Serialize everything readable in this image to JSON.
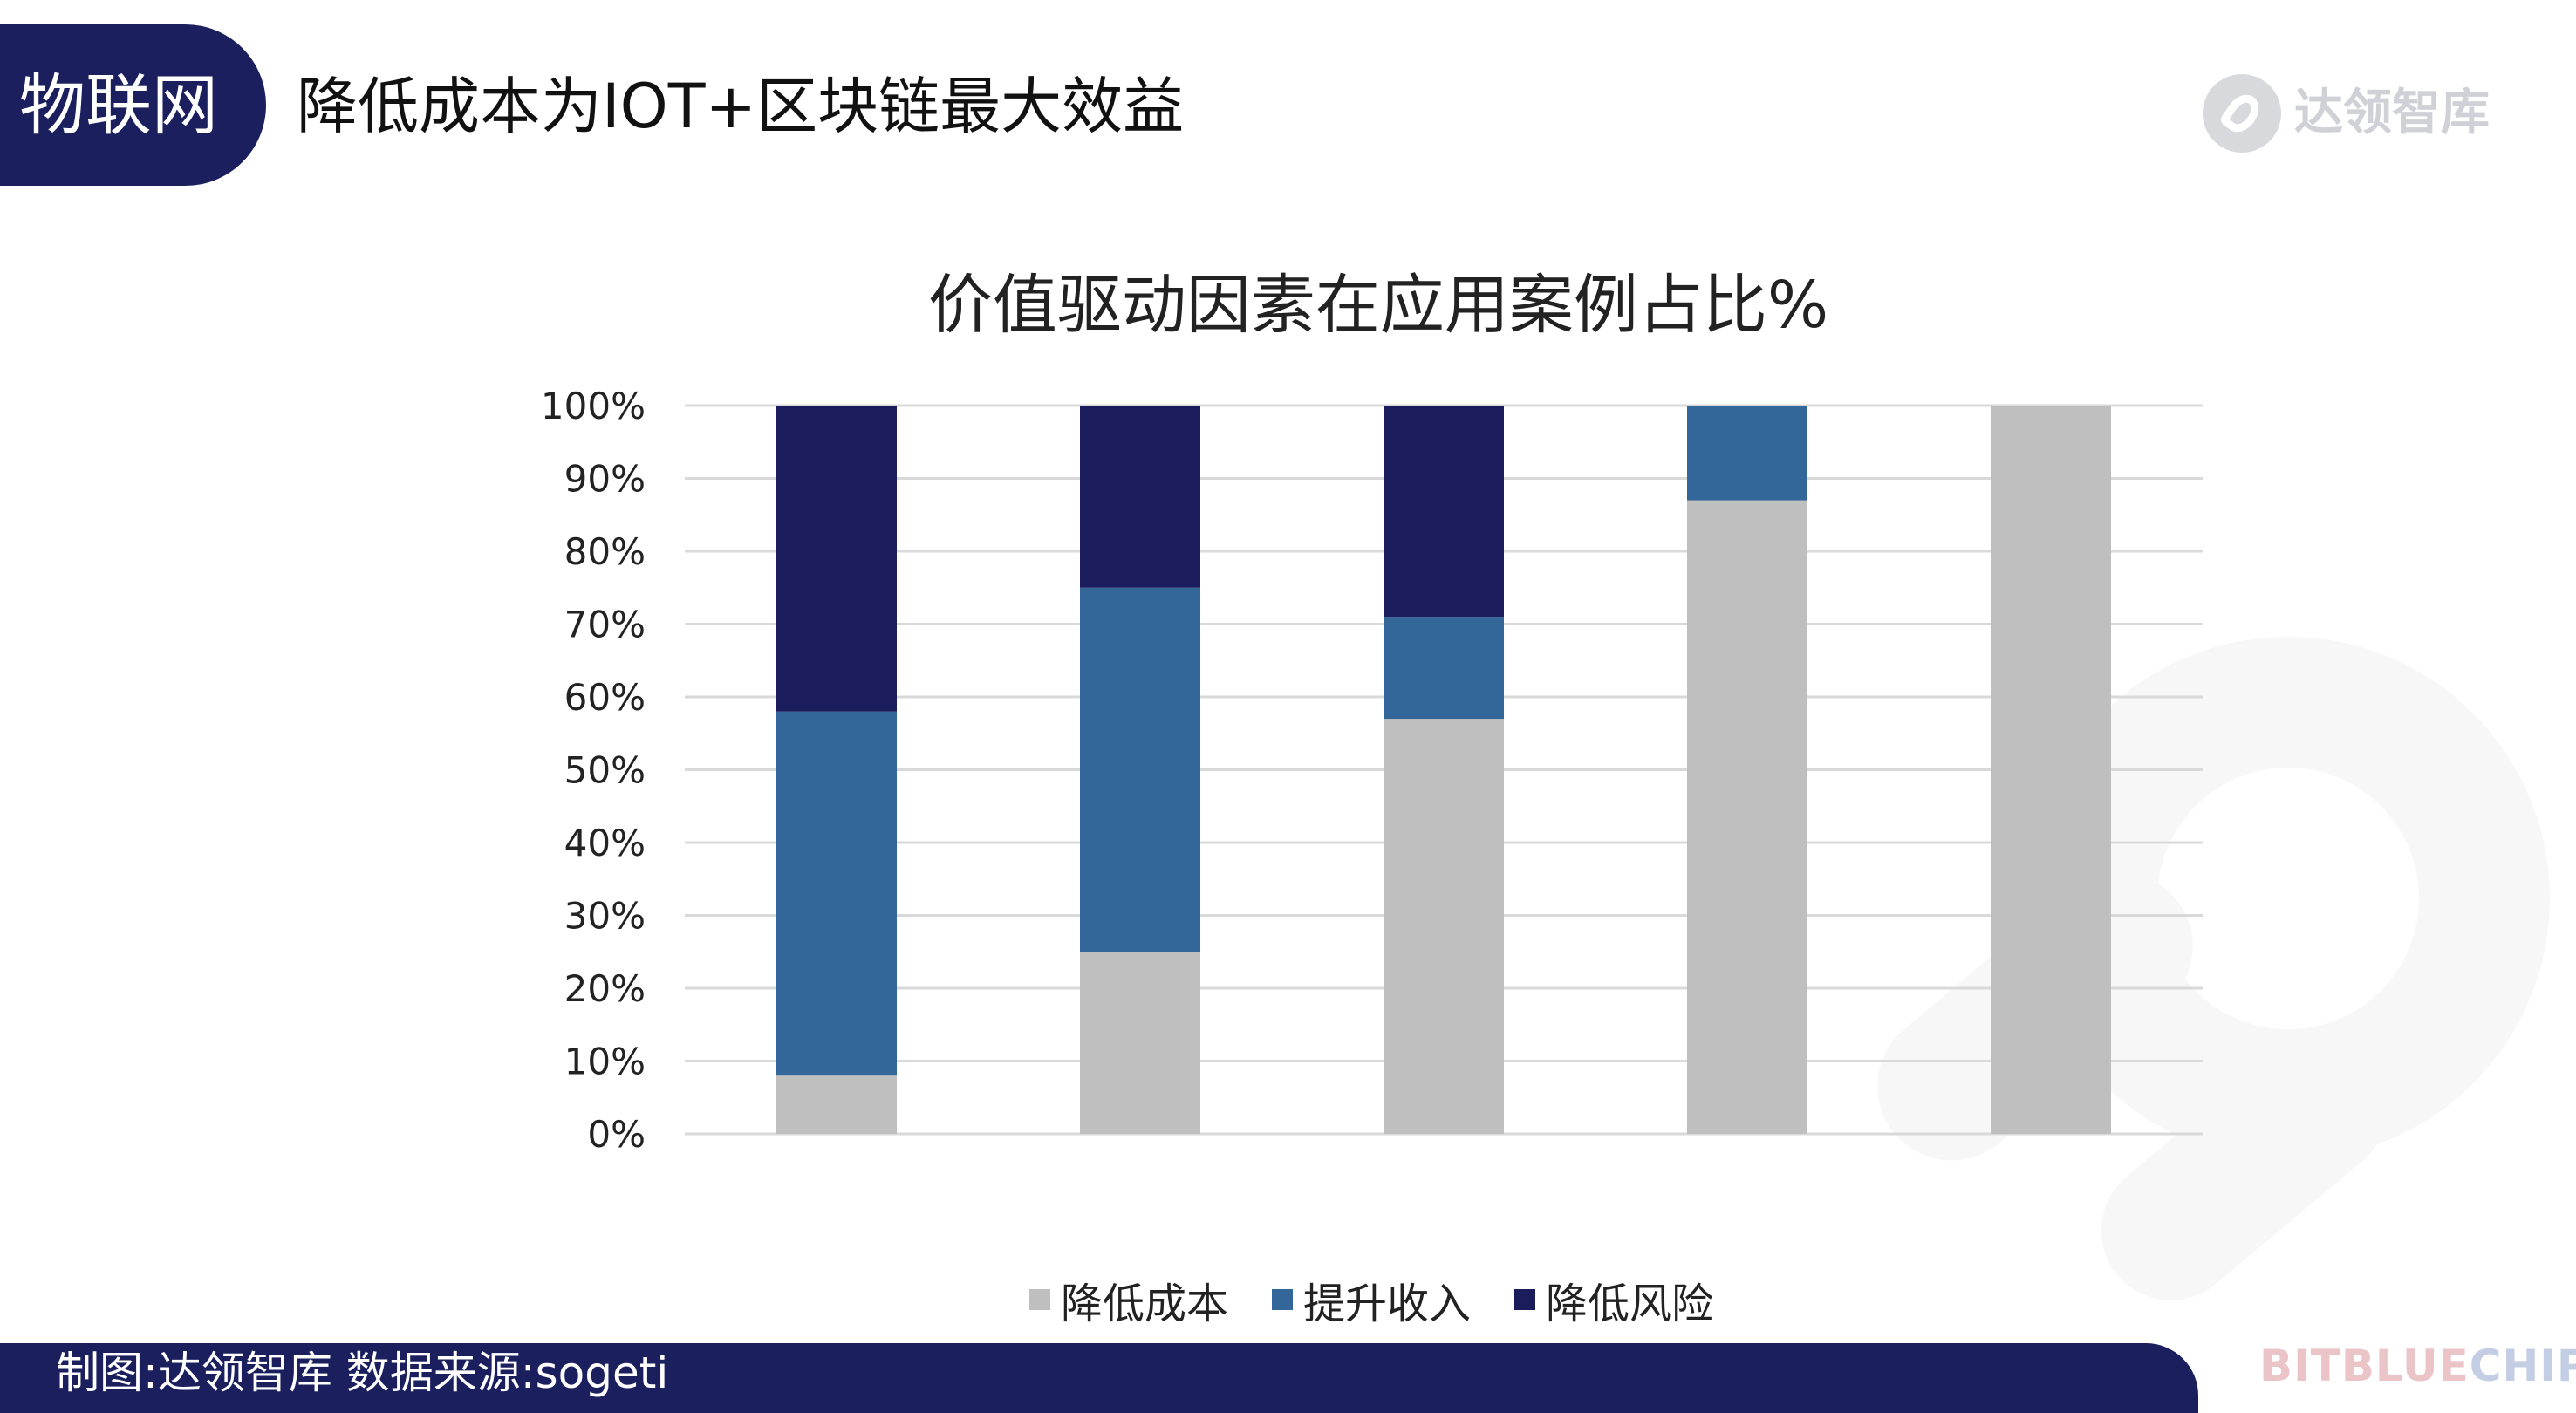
{
  "header": {
    "tag": "物联网",
    "headline": "降低成本为IOT+区块链最大效益",
    "logo_text": "达领智库"
  },
  "footer": {
    "source": "制图:达领智库 数据来源:sogeti",
    "brand_part1": "BITBLUE",
    "brand_part2": "CHIP"
  },
  "colors": {
    "header_navy": "#1b1f5e",
    "cost": "#bfbfbf",
    "revenue": "#336699",
    "risk": "#1b1c5c"
  },
  "chart_data": {
    "type": "bar",
    "stacked": true,
    "title": "价值驱动因素在应用案例占比%",
    "xlabel": "",
    "ylabel": "",
    "ylim": [
      0,
      100
    ],
    "y_ticks": [
      "0%",
      "10%",
      "20%",
      "30%",
      "40%",
      "50%",
      "60%",
      "70%",
      "80%",
      "90%",
      "100%"
    ],
    "categories": [
      "",
      "",
      "",
      "",
      ""
    ],
    "grid": true,
    "legend_position": "bottom",
    "series": [
      {
        "name": "降低成本",
        "color": "#bfbfbf",
        "values": [
          8,
          25,
          57,
          87,
          100
        ]
      },
      {
        "name": "提升收入",
        "color": "#336699",
        "values": [
          50,
          50,
          14,
          13,
          0
        ]
      },
      {
        "name": "降低风险",
        "color": "#1b1c5c",
        "values": [
          42,
          25,
          29,
          0,
          0
        ]
      }
    ]
  }
}
